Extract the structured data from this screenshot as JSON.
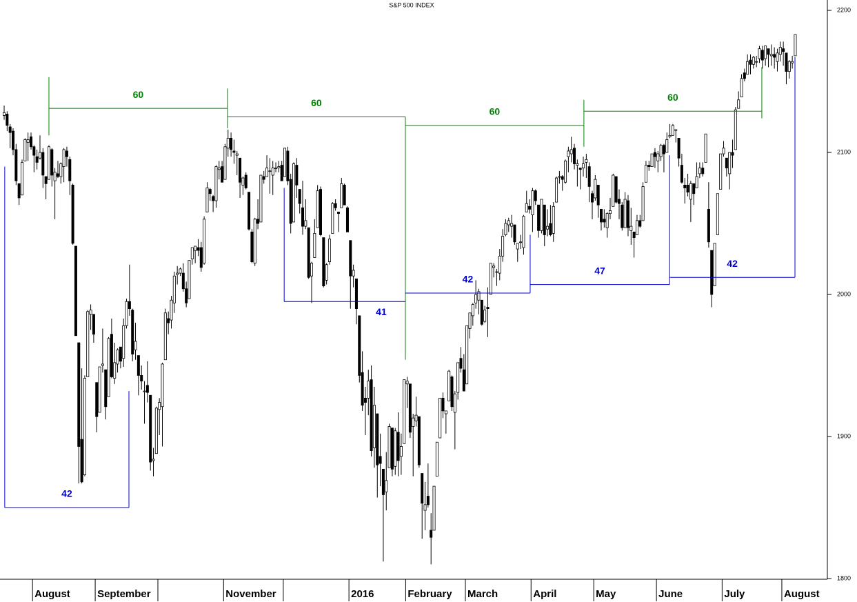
{
  "chart_data": {
    "type": "candlestick",
    "title": "S&P 500 INDEX",
    "ylim": [
      1799.5,
      2207.3
    ],
    "yticks": [
      1800,
      1900,
      2000,
      2100,
      2200
    ],
    "xlim": [
      -1.39,
      275.75
    ],
    "xticks": [
      {
        "value": 9.5,
        "label": "August"
      },
      {
        "value": 30.5,
        "label": "September"
      },
      {
        "value": 73.5,
        "label": "November"
      },
      {
        "value": 115.5,
        "label": "2016"
      },
      {
        "value": 134.5,
        "label": "February"
      },
      {
        "value": 154.5,
        "label": "March"
      },
      {
        "value": 176.5,
        "label": "April"
      },
      {
        "value": 197.5,
        "label": "May"
      },
      {
        "value": 218.5,
        "label": "June"
      },
      {
        "value": 240.5,
        "label": "July"
      },
      {
        "value": 260.5,
        "label": "August"
      }
    ],
    "xticks_unlabeled": [
      51.5,
      93.5
    ],
    "up_color": "#ffffff",
    "down_color": "#000000",
    "open": [
      2126,
      2127,
      2118,
      2115,
      2102,
      2078,
      2070,
      2094,
      2107,
      2111,
      2104,
      2097,
      2096,
      2100,
      2083,
      2081,
      2102,
      2080,
      2085,
      2083,
      2090,
      2101,
      2095,
      2077,
      2034,
      1966,
      1898,
      1873,
      1942,
      1986,
      1986,
      1938,
      1917,
      1950,
      1947,
      1928,
      1972,
      1941,
      1951,
      1963,
      1955,
      1978,
      1995,
      1989,
      1961,
      1957,
      1943,
      1932,
      1936,
      1929,
      1883,
      1888,
      1919,
      1921,
      1954,
      1983,
      1982,
      1994,
      2014,
      2015,
      2015,
      2004,
      1997,
      2025,
      2031,
      2033,
      2033,
      2022,
      2058,
      2074,
      2069,
      2066,
      2088,
      2090,
      2081,
      2103,
      2110,
      2101,
      2098,
      2096,
      2077,
      2084,
      2072,
      2044,
      2022,
      2053,
      2051,
      2083,
      2083,
      2087,
      2084,
      2089,
      2089,
      2091,
      2083,
      2101,
      2081,
      2051,
      2091,
      2074,
      2061,
      2048,
      2047,
      2013,
      2026,
      2047,
      2074,
      2040,
      2010,
      2023,
      2043,
      2064,
      2058,
      2061,
      2077,
      2061,
      2038,
      2013,
      2011,
      1985,
      1945,
      1927,
      1927,
      1940,
      1892,
      1916,
      1886,
      1877,
      1861,
      1878,
      1906,
      1879,
      1903,
      1886,
      1895,
      1937,
      1937,
      1907,
      1911,
      1914,
      1874,
      1848,
      1858,
      1834,
      1834,
      1872,
      1899,
      1927,
      1916,
      1925,
      1942,
      1917,
      1931,
      1955,
      1947,
      1937,
      1976,
      1985,
      1994,
      1996,
      1996,
      1981,
      1991,
      2000,
      2019,
      2016,
      2015,
      2027,
      2042,
      2049,
      2048,
      2049,
      2032,
      2037,
      2033,
      2058,
      2062,
      2056,
      2073,
      2063,
      2045,
      2063,
      2046,
      2050,
      2043,
      2065,
      2083,
      2083,
      2079,
      2097,
      2099,
      2103,
      2091,
      2089,
      2089,
      2093,
      2090,
      2071,
      2068,
      2077,
      2060,
      2053,
      2047,
      2057,
      2062,
      2083,
      2067,
      2063,
      2047,
      2066,
      2045,
      2044,
      2042,
      2052,
      2052,
      2079,
      2091,
      2090,
      2100,
      2094,
      2097,
      2105,
      2100,
      2111,
      2112,
      2116,
      2110,
      2091,
      2077,
      2077,
      2067,
      2078,
      2075,
      2085,
      2089,
      2093,
      2060,
      2031,
      2006,
      2042,
      2074,
      2099,
      2096,
      2085,
      2100,
      2102,
      2131,
      2139,
      2156,
      2155,
      2165,
      2162,
      2164,
      2166,
      2172,
      2166,
      2173,
      2168,
      2169,
      2164,
      2169,
      2173,
      2170,
      2157,
      2163,
      2168
    ],
    "high": [
      2133,
      2129,
      2120,
      2117,
      2106,
      2078,
      2095,
      2110,
      2114,
      2114,
      2105,
      2102,
      2112,
      2103,
      2083,
      2105,
      2103,
      2089,
      2094,
      2093,
      2103,
      2104,
      2097,
      2078,
      2034,
      1966,
      1948,
      1943,
      1989,
      1993,
      1986,
      1938,
      1949,
      1976,
      1947,
      1970,
      1983,
      1966,
      1962,
      1963,
      1983,
      1997,
      2021,
      1990,
      1980,
      1957,
      1950,
      1939,
      1953,
      1929,
      1892,
      1921,
      1927,
      1952,
      1990,
      1988,
      1999,
      2016,
      2020,
      2019,
      2022,
      2009,
      2024,
      2033,
      2034,
      2039,
      2037,
      2055,
      2079,
      2075,
      2070,
      2091,
      2094,
      2094,
      2106,
      2116,
      2114,
      2109,
      2101,
      2096,
      2083,
      2086,
      2072,
      2046,
      2054,
      2067,
      2084,
      2087,
      2098,
      2096,
      2094,
      2093,
      2094,
      2094,
      2103,
      2104,
      2085,
      2093,
      2096,
      2074,
      2080,
      2067,
      2047,
      2023,
      2053,
      2077,
      2076,
      2040,
      2022,
      2042,
      2065,
      2067,
      2058,
      2082,
      2078,
      2062,
      2038,
      2021,
      2011,
      1985,
      1960,
      1935,
      1947,
      1950,
      1935,
      1916,
      1902,
      1877,
      1889,
      1909,
      1906,
      1906,
      1917,
      1902,
      1940,
      1942,
      1937,
      1916,
      1928,
      1914,
      1874,
      1868,
      1881,
      1846,
      1865,
      1895,
      1927,
      1931,
      1918,
      1947,
      1943,
      1932,
      1952,
      1963,
      1958,
      1978,
      1987,
      1994,
      2010,
      2004,
      1996,
      1992,
      2005,
      2022,
      2022,
      2018,
      2032,
      2046,
      2053,
      2054,
      2056,
      2049,
      2036,
      2042,
      2056,
      2073,
      2067,
      2075,
      2074,
      2063,
      2067,
      2063,
      2060,
      2063,
      2065,
      2083,
      2087,
      2084,
      2095,
      2104,
      2111,
      2106,
      2095,
      2089,
      2097,
      2099,
      2093,
      2073,
      2084,
      2077,
      2060,
      2060,
      2058,
      2068,
      2085,
      2083,
      2074,
      2065,
      2072,
      2070,
      2061,
      2044,
      2056,
      2056,
      2079,
      2094,
      2094,
      2099,
      2103,
      2101,
      2106,
      2106,
      2114,
      2120,
      2120,
      2116,
      2110,
      2099,
      2082,
      2085,
      2080,
      2078,
      2093,
      2093,
      2093,
      2113,
      2079,
      2031,
      2036,
      2071,
      2099,
      2108,
      2096,
      2100,
      2109,
      2132,
      2143,
      2155,
      2159,
      2169,
      2169,
      2168,
      2168,
      2175,
      2175,
      2175,
      2173,
      2176,
      2174,
      2173,
      2178,
      2178,
      2170,
      2165,
      2168,
      2183
    ],
    "low": [
      2123,
      2115,
      2103,
      2098,
      2077,
      2063,
      2070,
      2094,
      2094,
      2102,
      2086,
      2088,
      2095,
      2075,
      2067,
      2081,
      2076,
      2053,
      2082,
      2078,
      2079,
      2090,
      2070,
      2035,
      1971,
      1867,
      1867,
      1872,
      1942,
      1975,
      1966,
      1903,
      1917,
      1945,
      1912,
      1928,
      1941,
      1937,
      1945,
      1948,
      1949,
      1976,
      1985,
      1953,
      1954,
      1929,
      1933,
      1909,
      1924,
      1876,
      1872,
      1888,
      1901,
      1893,
      1954,
      1972,
      1976,
      1987,
      2007,
      2013,
      2002,
      1991,
      1997,
      2021,
      2022,
      2027,
      2016,
      2021,
      2058,
      2066,
      2058,
      2061,
      2081,
      2079,
      2081,
      2097,
      2097,
      2092,
      2084,
      2068,
      2070,
      2074,
      2045,
      2022,
      2020,
      2046,
      2051,
      2078,
      2083,
      2071,
      2070,
      2086,
      2086,
      2080,
      2083,
      2077,
      2043,
      2051,
      2068,
      2057,
      2042,
      2046,
      2011,
      1994,
      2026,
      2047,
      2041,
      2005,
      2007,
      2021,
      2043,
      2059,
      2044,
      2061,
      2063,
      2044,
      1990,
      2005,
      1979,
      1938,
      1918,
      1901,
      1915,
      1886,
      1878,
      1857,
      1865,
      1812,
      1848,
      1878,
      1872,
      1873,
      1872,
      1873,
      1895,
      1920,
      1899,
      1872,
      1907,
      1878,
      1828,
      1834,
      1850,
      1810,
      1834,
      1872,
      1899,
      1913,
      1902,
      1925,
      1918,
      1891,
      1926,
      1945,
      1932,
      1937,
      1969,
      1978,
      1990,
      1986,
      1978,
      1980,
      1970,
      2000,
      2012,
      2006,
      2010,
      2023,
      2041,
      2044,
      2040,
      2035,
      2023,
      2032,
      2028,
      2058,
      2057,
      2044,
      2063,
      2040,
      2043,
      2034,
      2041,
      2041,
      2037,
      2065,
      2078,
      2073,
      2078,
      2086,
      2093,
      2088,
      2076,
      2074,
      2083,
      2082,
      2065,
      2053,
      2066,
      2054,
      2045,
      2047,
      2040,
      2053,
      2062,
      2064,
      2053,
      2045,
      2047,
      2041,
      2035,
      2026,
      2042,
      2047,
      2052,
      2079,
      2087,
      2090,
      2089,
      2086,
      2094,
      2086,
      2100,
      2110,
      2112,
      2107,
      2090,
      2078,
      2064,
      2069,
      2051,
      2063,
      2075,
      2082,
      2083,
      2093,
      2033,
      1991,
      2006,
      2042,
      2074,
      2097,
      2083,
      2074,
      2089,
      2102,
      2131,
      2139,
      2150,
      2155,
      2155,
      2159,
      2160,
      2163,
      2159,
      2161,
      2160,
      2161,
      2159,
      2157,
      2164,
      2161,
      2148,
      2152,
      2159,
      2168
    ],
    "close": [
      2128,
      2119,
      2114,
      2102,
      2080,
      2068,
      2093,
      2109,
      2109,
      2104,
      2098,
      2093,
      2100,
      2084,
      2078,
      2104,
      2084,
      2086,
      2083,
      2092,
      2102,
      2097,
      2080,
      2036,
      1971,
      1893,
      1868,
      1941,
      1988,
      1989,
      1972,
      1914,
      1949,
      1951,
      1921,
      1969,
      1942,
      1952,
      1961,
      1953,
      1978,
      1995,
      1990,
      1958,
      1967,
      1943,
      1939,
      1932,
      1931,
      1882,
      1884,
      1920,
      1924,
      1951,
      1987,
      1980,
      1996,
      2013,
      2015,
      2018,
      2004,
      1994,
      2024,
      2033,
      2034,
      2031,
      2019,
      2053,
      2075,
      2071,
      2066,
      2090,
      2089,
      2079,
      2104,
      2110,
      2102,
      2100,
      2099,
      2079,
      2082,
      2075,
      2046,
      2023,
      2053,
      2050,
      2084,
      2081,
      2089,
      2087,
      2089,
      2089,
      2090,
      2080,
      2103,
      2080,
      2050,
      2092,
      2077,
      2064,
      2048,
      2052,
      2012,
      2022,
      2043,
      2073,
      2042,
      2006,
      2021,
      2039,
      2064,
      2061,
      2057,
      2078,
      2063,
      2044,
      2013,
      2017,
      1990,
      1943,
      1922,
      1924,
      1939,
      1890,
      1922,
      1880,
      1881,
      1859,
      1869,
      1907,
      1877,
      1904,
      1883,
      1893,
      1940,
      1939,
      1903,
      1913,
      1915,
      1880,
      1853,
      1852,
      1852,
      1829,
      1865,
      1896,
      1927,
      1918,
      1918,
      1946,
      1921,
      1930,
      1952,
      1948,
      1932,
      1978,
      1987,
      1993,
      2000,
      2002,
      1979,
      1989,
      1990,
      2022,
      2020,
      2016,
      2027,
      2041,
      2050,
      2052,
      2050,
      2037,
      2036,
      2037,
      2055,
      2064,
      2060,
      2073,
      2066,
      2045,
      2067,
      2042,
      2048,
      2042,
      2062,
      2082,
      2083,
      2081,
      2094,
      2101,
      2102,
      2092,
      2092,
      2088,
      2092,
      2095,
      2076,
      2065,
      2081,
      2063,
      2051,
      2051,
      2057,
      2059,
      2084,
      2065,
      2064,
      2047,
      2067,
      2047,
      2048,
      2040,
      2052,
      2048,
      2076,
      2091,
      2090,
      2099,
      2097,
      2099,
      2105,
      2099,
      2109,
      2112,
      2119,
      2116,
      2096,
      2079,
      2075,
      2072,
      2078,
      2071,
      2083,
      2089,
      2085,
      2113,
      2037,
      2000,
      2036,
      2071,
      2099,
      2103,
      2089,
      2100,
      2098,
      2130,
      2137,
      2152,
      2152,
      2164,
      2162,
      2167,
      2164,
      2173,
      2165,
      2175,
      2169,
      2169,
      2167,
      2170,
      2174,
      2171,
      2157,
      2164,
      2164,
      2183
    ],
    "annotations": [
      {
        "text": "60",
        "color": "#008000",
        "x": [
          15.0,
          74.8
        ],
        "y": 2131,
        "left": [
          2153,
          2112
        ],
        "right": [
          2145,
          2117
        ]
      },
      {
        "text": "60",
        "color": "#008000",
        "x": [
          74.8,
          134.4
        ],
        "y": 2125,
        "right": [
          2125,
          1954
        ]
      },
      {
        "text": "60",
        "color": "#008000",
        "x": [
          134.4,
          194.2
        ],
        "y": 2119,
        "right": [
          2137,
          2104
        ]
      },
      {
        "text": "60",
        "color": "#008000",
        "x": [
          194.2,
          253.8
        ],
        "y": 2129,
        "right": [
          2160,
          2124
        ]
      },
      {
        "text": "42",
        "color": "#0000cc",
        "x": [
          0.2,
          41.8
        ],
        "y": 1850,
        "left": [
          2090,
          1850
        ],
        "right": [
          1932,
          1850
        ]
      },
      {
        "text": "41",
        "color": "#0000cc",
        "x": [
          93.8,
          134.4
        ],
        "y": 1995,
        "left": [
          2075,
          1995
        ],
        "label_side": "below"
      },
      {
        "text": "42",
        "color": "#0000cc",
        "x": [
          134.4,
          176.2
        ],
        "y": 2001,
        "right": [
          2042,
          2001
        ]
      },
      {
        "text": "47",
        "color": "#0000cc",
        "x": [
          176.2,
          222.9
        ],
        "y": 2007,
        "right": [
          2098,
          2007
        ]
      },
      {
        "text": "42",
        "color": "#0000cc",
        "x": [
          222.9,
          264.9
        ],
        "y": 2012,
        "right": [
          2167,
          2012
        ]
      }
    ]
  }
}
